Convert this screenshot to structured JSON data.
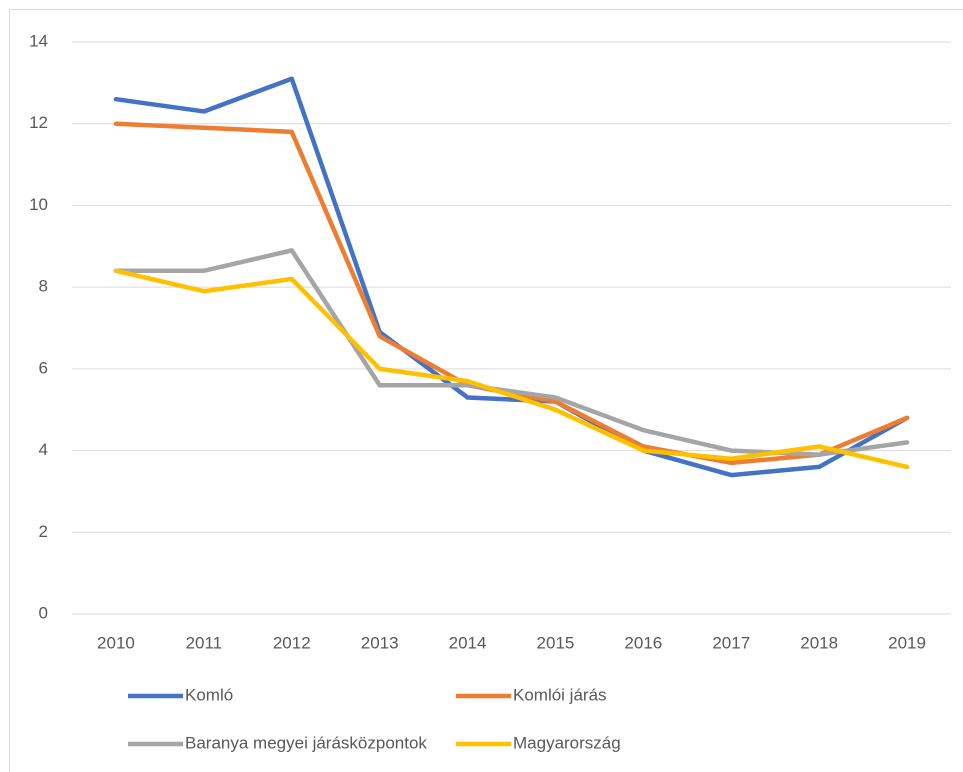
{
  "chart_data": {
    "type": "line",
    "categories": [
      "2010",
      "2011",
      "2012",
      "2013",
      "2014",
      "2015",
      "2016",
      "2017",
      "2018",
      "2019"
    ],
    "series": [
      {
        "name": "Komló",
        "color": "#4472c4",
        "values": [
          12.6,
          12.3,
          13.1,
          6.9,
          5.3,
          5.2,
          4.0,
          3.4,
          3.6,
          4.8
        ]
      },
      {
        "name": "Komlói járás",
        "color": "#ed7d31",
        "values": [
          12.0,
          11.9,
          11.8,
          6.8,
          5.6,
          5.2,
          4.1,
          3.7,
          3.9,
          4.8
        ]
      },
      {
        "name": "Baranya megyei járásközpontok",
        "color": "#a5a5a5",
        "values": [
          8.4,
          8.4,
          8.9,
          5.6,
          5.6,
          5.3,
          4.5,
          4.0,
          3.9,
          4.2
        ]
      },
      {
        "name": "Magyarország",
        "color": "#ffc000",
        "values": [
          8.4,
          7.9,
          8.2,
          6.0,
          5.7,
          5.0,
          4.0,
          3.8,
          4.1,
          3.6
        ]
      }
    ],
    "ylim": [
      0,
      14
    ],
    "yticks": [
      0,
      2,
      4,
      6,
      8,
      10,
      12,
      14
    ],
    "grid": true,
    "legend": "bottom"
  }
}
